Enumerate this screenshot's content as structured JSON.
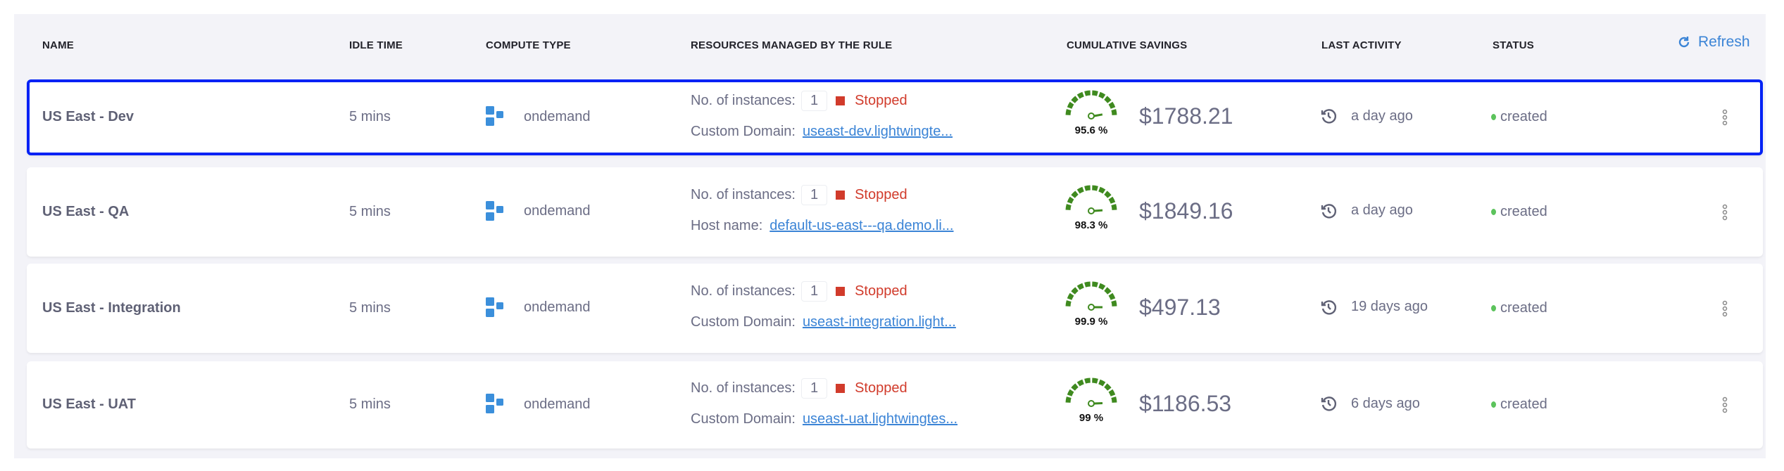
{
  "header": {
    "columns": [
      "NAME",
      "IDLE TIME",
      "COMPUTE TYPE",
      "RESOURCES MANAGED BY THE RULE",
      "CUMULATIVE SAVINGS",
      "LAST ACTIVITY",
      "STATUS"
    ],
    "refresh_label": "Refresh"
  },
  "colors": {
    "accent": "#3b84d6",
    "stopped": "#d13b2b",
    "gauge": "#3f8a1f",
    "selected_outline": "#0022f5",
    "status_dot": "#5cc35c"
  },
  "rows": [
    {
      "name": "US East - Dev",
      "idle_time": "5 mins",
      "compute_type": "ondemand",
      "instances_label": "No. of instances:",
      "instances": "1",
      "state": "Stopped",
      "domain_label": "Custom Domain:",
      "domain": "useast-dev.lightwingte...",
      "savings_pct": 95.6,
      "savings_pct_label": "95.6 %",
      "savings": "$1788.21",
      "last_activity": "a day ago",
      "status": "created",
      "selected": true
    },
    {
      "name": "US East - QA",
      "idle_time": "5 mins",
      "compute_type": "ondemand",
      "instances_label": "No. of instances:",
      "instances": "1",
      "state": "Stopped",
      "domain_label": "Host name:",
      "domain": "default-us-east---qa.demo.li...",
      "savings_pct": 98.3,
      "savings_pct_label": "98.3 %",
      "savings": "$1849.16",
      "last_activity": "a day ago",
      "status": "created",
      "selected": false
    },
    {
      "name": "US East - Integration",
      "idle_time": "5 mins",
      "compute_type": "ondemand",
      "instances_label": "No. of instances:",
      "instances": "1",
      "state": "Stopped",
      "domain_label": "Custom Domain:",
      "domain": "useast-integration.light...",
      "savings_pct": 99.9,
      "savings_pct_label": "99.9 %",
      "savings": "$497.13",
      "last_activity": "19 days ago",
      "status": "created",
      "selected": false
    },
    {
      "name": "US East - UAT",
      "idle_time": "5 mins",
      "compute_type": "ondemand",
      "instances_label": "No. of instances:",
      "instances": "1",
      "state": "Stopped",
      "domain_label": "Custom Domain:",
      "domain": "useast-uat.lightwingtes...",
      "savings_pct": 99,
      "savings_pct_label": "99 %",
      "savings": "$1186.53",
      "last_activity": "6 days ago",
      "status": "created",
      "selected": false
    }
  ]
}
